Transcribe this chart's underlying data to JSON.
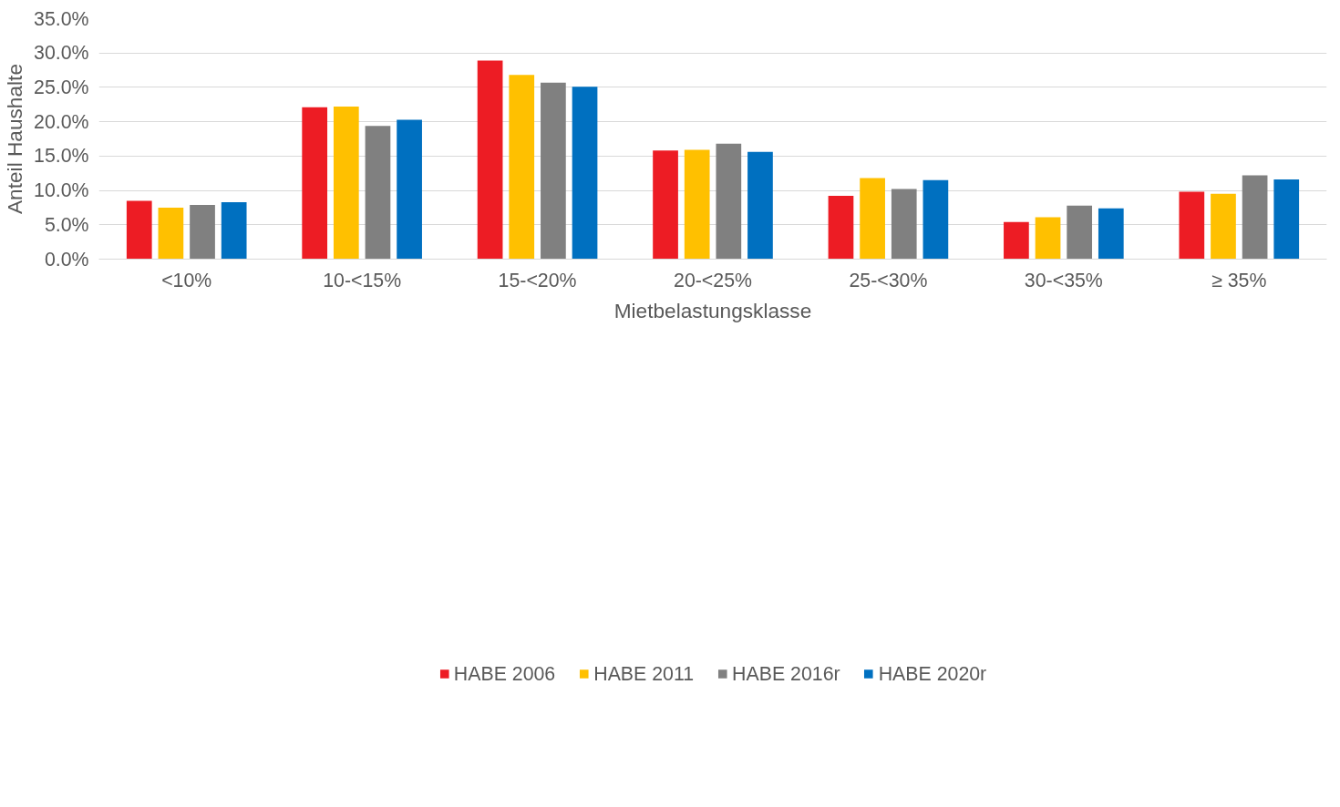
{
  "chart_data": {
    "type": "bar",
    "xlabel": "Mietbelastungsklasse",
    "ylabel": "Anteil Haushalte",
    "categories": [
      "<10%",
      "10-<15%",
      "15-<20%",
      "20-<25%",
      "25-<30%",
      "30-<35%",
      "≥ 35%"
    ],
    "series": [
      {
        "name": "HABE 2006",
        "color": "#ed1c24",
        "values": [
          8.5,
          22.1,
          28.9,
          15.8,
          9.2,
          5.4,
          9.8
        ]
      },
      {
        "name": "HABE 2011",
        "color": "#ffc000",
        "values": [
          7.5,
          22.2,
          26.8,
          15.9,
          11.8,
          6.1,
          9.5
        ]
      },
      {
        "name": "HABE 2016r",
        "color": "#808080",
        "values": [
          7.9,
          19.4,
          25.7,
          16.8,
          10.2,
          7.8,
          12.2
        ]
      },
      {
        "name": "HABE 2020r",
        "color": "#0070c0",
        "values": [
          8.3,
          20.3,
          25.1,
          15.6,
          11.5,
          7.4,
          11.6
        ]
      }
    ],
    "ylim": [
      0,
      35
    ],
    "yticks": [
      {
        "value": 0,
        "label": "0.0%"
      },
      {
        "value": 5,
        "label": "5.0%"
      },
      {
        "value": 10,
        "label": "10.0%"
      },
      {
        "value": 15,
        "label": "15.0%"
      },
      {
        "value": 20,
        "label": "20.0%"
      },
      {
        "value": 25,
        "label": "25.0%"
      },
      {
        "value": 30,
        "label": "30.0%"
      },
      {
        "value": 35,
        "label": "35.0%"
      }
    ],
    "grid": "y",
    "legend": "bottom"
  }
}
